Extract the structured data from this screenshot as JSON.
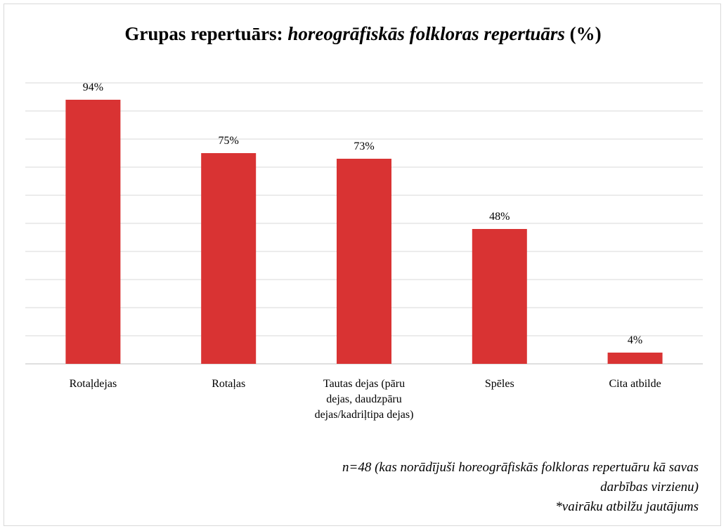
{
  "title": {
    "prefix": "Grupas repertuārs:",
    "emphasis": "horeogrāfiskās folkloras repertuārs",
    "suffix": "(%)"
  },
  "chart_data": {
    "type": "bar",
    "categories": [
      [
        "Rotaļdejas"
      ],
      [
        "Rotaļas"
      ],
      [
        "Tautas dejas (pāru",
        "dejas, daudzpāru",
        "dejas/kadriļtipa dejas)"
      ],
      [
        "Spēles"
      ],
      [
        "Cita atbilde"
      ]
    ],
    "values": [
      94,
      75,
      73,
      48,
      4
    ],
    "value_labels": [
      "94%",
      "75%",
      "73%",
      "48%",
      "4%"
    ],
    "ylim": [
      0,
      100
    ],
    "grid": true,
    "bar_color": "#d93333",
    "grid_color": "#d9d9d9"
  },
  "note": {
    "line1": "n=48 (kas norādījuši horeogrāfiskās folkloras repertuāru kā savas",
    "line2": "darbības virzienu)",
    "line3": "*vairāku atbilžu jautājums"
  }
}
